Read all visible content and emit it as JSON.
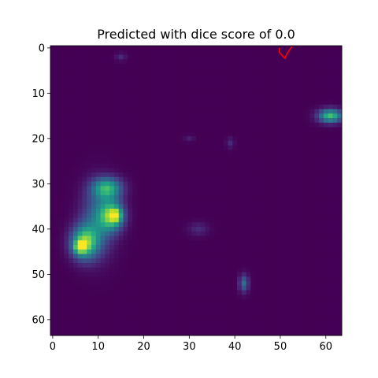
{
  "chart_data": {
    "type": "heatmap",
    "title": "Predicted with dice score of 0.0",
    "xlabel": "",
    "ylabel": "",
    "grid_size": [
      64,
      64
    ],
    "xlim": [
      -0.5,
      63.5
    ],
    "ylim": [
      63.5,
      -0.5
    ],
    "x_ticks": [
      0,
      10,
      20,
      30,
      40,
      50,
      60
    ],
    "y_ticks": [
      0,
      10,
      20,
      30,
      40,
      50,
      60
    ],
    "colormap": "viridis",
    "background_value": 0.0,
    "grid": false,
    "intensity_blobs": [
      {
        "label": "left-lower-blob",
        "cx": 7,
        "cy": 43,
        "sx": 2.0,
        "sy": 2.5,
        "amp": 0.75
      },
      {
        "label": "left-lower-peak",
        "cx": 6,
        "cy": 44,
        "sx": 1.0,
        "sy": 1.0,
        "amp": 0.45
      },
      {
        "label": "left-mid-blob",
        "cx": 13,
        "cy": 37,
        "sx": 1.8,
        "sy": 2.2,
        "amp": 0.7
      },
      {
        "label": "left-mid-peak",
        "cx": 14,
        "cy": 37,
        "sx": 0.8,
        "sy": 1.0,
        "amp": 0.4
      },
      {
        "label": "left-upper-blob",
        "cx": 12,
        "cy": 31,
        "sx": 2.2,
        "sy": 1.6,
        "amp": 0.6
      },
      {
        "label": "left-body",
        "cx": 10,
        "cy": 38,
        "sx": 2.5,
        "sy": 5.0,
        "amp": 0.35
      },
      {
        "label": "right-edge-blob",
        "cx": 61,
        "cy": 15,
        "sx": 1.8,
        "sy": 1.0,
        "amp": 0.7
      },
      {
        "label": "bottom-blob",
        "cx": 42,
        "cy": 52,
        "sx": 0.7,
        "sy": 1.3,
        "amp": 0.35
      },
      {
        "label": "faint-right-blob",
        "cx": 32,
        "cy": 40,
        "sx": 1.5,
        "sy": 1.0,
        "amp": 0.12
      },
      {
        "label": "faint-top-blob",
        "cx": 15,
        "cy": 2,
        "sx": 0.8,
        "sy": 0.6,
        "amp": 0.12
      },
      {
        "label": "faint-center-blob",
        "cx": 39,
        "cy": 21,
        "sx": 0.6,
        "sy": 0.8,
        "amp": 0.12
      },
      {
        "label": "faint-mid-blob",
        "cx": 30,
        "cy": 20,
        "sx": 0.8,
        "sy": 0.5,
        "amp": 0.08
      }
    ],
    "contour": {
      "color": "#ff0000",
      "points": [
        [
          49.8,
          0.0
        ],
        [
          49.8,
          1.0
        ],
        [
          51.0,
          2.3
        ],
        [
          51.5,
          1.2
        ],
        [
          52.0,
          0.5
        ],
        [
          52.5,
          -0.3
        ]
      ]
    }
  }
}
